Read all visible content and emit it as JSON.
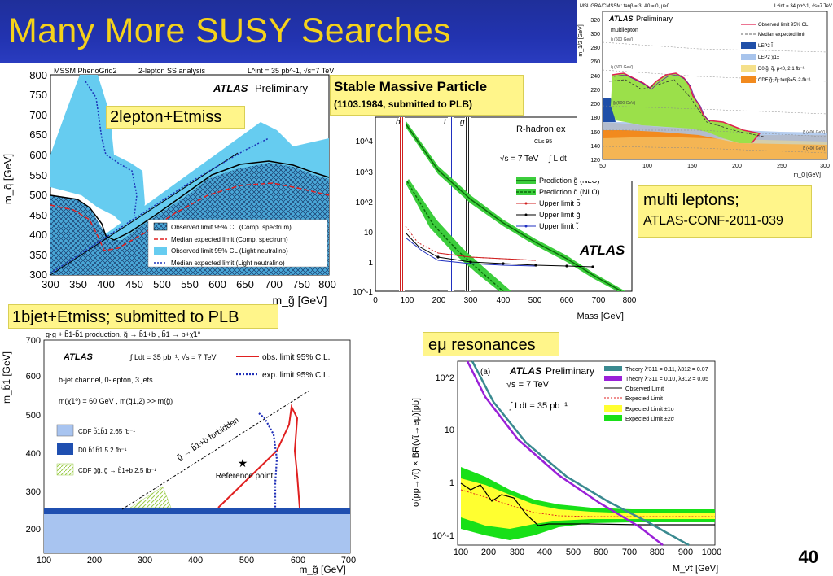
{
  "slide": {
    "title": "Many More SUSY Searches",
    "page_number": "40",
    "colors": {
      "title_bg": "#2233b0",
      "title_text": "#f5d21a",
      "label_bg": "#fff58a"
    }
  },
  "labels": {
    "two_lepton": "2lepton+Etmiss",
    "stable_massive_line1": "Stable Massive Particle",
    "stable_massive_line2": "(1103.1984, submitted to PLB)",
    "multi_leptons_line1": "multi leptons;",
    "multi_leptons_line2": "ATLAS-CONF-2011-039",
    "bjet": "1bjet+Etmiss; submitted to PLB",
    "emu": "eμ resonances"
  },
  "plot1": {
    "header_left": "MSSM PhenoGrid2",
    "header_mid": "2-lepton SS analysis",
    "header_right": "L^int = 35 pb^-1, √s=7 TeV",
    "atlas": "ATLAS",
    "preliminary": "Preliminary",
    "ylabel": "m_q̃ [GeV]",
    "xlabel": "m_g̃ [GeV]",
    "xticks": [
      "300",
      "350",
      "400",
      "450",
      "500",
      "550",
      "600",
      "650",
      "700",
      "750",
      "800"
    ],
    "yticks": [
      "800",
      "750",
      "700",
      "650",
      "600",
      "550",
      "500",
      "450",
      "400",
      "350",
      "300"
    ],
    "legend": [
      "Observed limit 95% CL (Comp. spectrum)",
      "Median expected limit (Comp. spectrum)",
      "Observed limit 95% CL (Light neutralino)",
      "Median expected limit (Light neutralino)"
    ],
    "colors": {
      "observed_light": "#66ccf0",
      "hatched": "#4aa8d8",
      "expected_comp": "#e02020",
      "expected_light": "#1c34b8"
    }
  },
  "plot2": {
    "header": "R-hadron ex",
    "cls": "CLs 95",
    "energy": "√s = 7 TeV",
    "lumi": "∫ L dt",
    "atlas": "ATLAS",
    "xlabel": "Mass [GeV]",
    "xticks": [
      "0",
      "100",
      "200",
      "300",
      "400",
      "500",
      "600",
      "700",
      "800"
    ],
    "yticks": [
      "10^4",
      "10^3",
      "10^2",
      "10",
      "1",
      "10^-1"
    ],
    "band_labels": [
      "b",
      "t",
      "g"
    ],
    "legend": [
      "Prediction g̃ (NLO)",
      "Prediction q̃ (NLO)",
      "Upper limit b̃",
      "Upper limit g̃",
      "Upper limit t̃"
    ]
  },
  "plot3": {
    "header_left": "MSUGRA/CMSSM: tanβ = 3, A0 = 0, μ>0",
    "header_right": "L^int = 34 pb^-1, √s=7 TeV",
    "atlas": "ATLAS",
    "preliminary": "Preliminary",
    "subtitle": "multilepton",
    "ylabel": "m_1/2 [GeV]",
    "xlabel": "m_0 [GeV]",
    "xticks": [
      "50",
      "100",
      "150",
      "200",
      "250",
      "300"
    ],
    "yticks": [
      "320",
      "300",
      "280",
      "260",
      "240",
      "220",
      "200",
      "180",
      "160",
      "140",
      "120"
    ],
    "legend": [
      "Observed limit 95% CL",
      "Median expected limit",
      "LEP2 l̃",
      "LEP2 χ̃1±",
      "D0 g̃, q̃, μ<0, 2.1 fb⁻¹",
      "CDF g̃, q̃, tanβ=5, 2 fb⁻¹"
    ],
    "mass_labels": [
      "q̃ (600 GeV)",
      "q̃ (500 GeV)",
      "g̃ (500 GeV)",
      "g̃ (400 GeV)",
      "q̃ (400 GeV)"
    ]
  },
  "plot4": {
    "process": "g·g + b̃1-b̃1 production, g̃ → b̃1+b , b̃1 → b+χ̃1⁰",
    "atlas": "ATLAS",
    "lumi": "∫ Ldt = 35 pb⁻¹, √s = 7 TeV",
    "channel": "b-jet channel, 0-lepton, 3 jets",
    "masses": "m(χ̃1⁰) = 60 GeV , m(q̃1,2) >> m(g̃)",
    "legend_obs": "obs. limit 95% C.L.",
    "legend_exp": "exp. limit 95% C.L.",
    "legend_boxes": [
      "CDF b̃1b̃1 2.65 fb⁻¹",
      "D0 b̃1b̃1 5.2 fb⁻¹",
      "CDF g̃g̃, g̃ → b̃1+b 2.5 fb⁻¹"
    ],
    "forbidden": "g̃ → b̃1+b forbidden",
    "reference": "Reference point",
    "ylabel": "m_b̃1 [GeV]",
    "xlabel": "m_g̃ [GeV]",
    "xticks": [
      "100",
      "200",
      "300",
      "400",
      "500",
      "600",
      "700"
    ],
    "yticks": [
      "700",
      "600",
      "500",
      "400",
      "300",
      "200"
    ]
  },
  "plot5": {
    "panel_tag": "(a)",
    "atlas": "ATLAS",
    "preliminary": "Preliminary",
    "energy": "√s = 7 TeV",
    "lumi": "∫ Ldt = 35 pb⁻¹",
    "ylabel": "σ(pp→ν̃τ) × BR(ν̃τ→eμ)[pb]",
    "xlabel": "M_ν̃τ [GeV]",
    "xticks": [
      "100",
      "200",
      "300",
      "400",
      "500",
      "600",
      "700",
      "800",
      "900",
      "1000"
    ],
    "yticks": [
      "10^2",
      "10",
      "1",
      "10^-1"
    ],
    "legend": [
      "Theory λ'311 = 0.11, λ312 = 0.07",
      "Theory λ'311 = 0.10, λ312 = 0.05",
      "Observed Limit",
      "Expected Limit",
      "Expected Limit ±1σ",
      "Expected Limit ±2σ"
    ]
  }
}
